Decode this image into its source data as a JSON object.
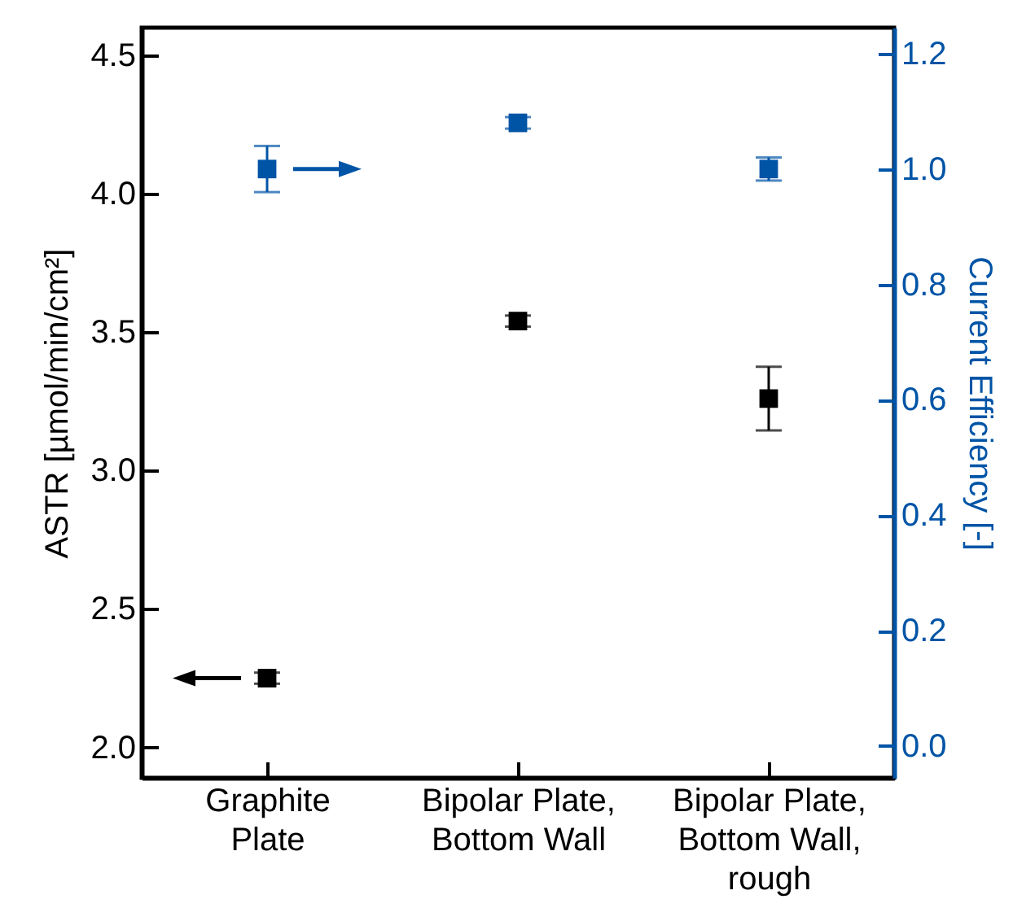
{
  "chart_data": {
    "type": "scatter",
    "categories": [
      "Graphite Plate",
      "Bipolar Plate, Bottom Wall",
      "Bipolar Plate, Bottom Wall, rough"
    ],
    "ylabel": "ASTR [µmol/min/cm²]",
    "y2label": "Current Efficiency [-]",
    "marker": "square",
    "ylim": [
      1.89,
      4.6
    ],
    "yticks": [
      {
        "value": 2,
        "label": "2.0"
      },
      {
        "value": 2.5,
        "label": "2.5"
      },
      {
        "value": 3,
        "label": "3.0"
      },
      {
        "value": 3.5,
        "label": "3.5"
      },
      {
        "value": 4,
        "label": "4.0"
      },
      {
        "value": 4.5,
        "label": "4.5"
      }
    ],
    "y2lim": [
      -0.055,
      1.245
    ],
    "y2ticks": [
      {
        "value": 0,
        "label": "0.0"
      },
      {
        "value": 0.2,
        "label": "0.2"
      },
      {
        "value": 0.4,
        "label": "0.4"
      },
      {
        "value": 0.6,
        "label": "0.6"
      },
      {
        "value": 0.8,
        "label": "0.8"
      },
      {
        "value": 1,
        "label": "1.0"
      },
      {
        "value": 1.2,
        "label": "1.2"
      }
    ],
    "series": [
      {
        "color": "#000000",
        "values": [
          2.25,
          3.54,
          3.26
        ],
        "errors": [
          0.02,
          0.02,
          0.115
        ]
      },
      {
        "color": "#0054a6",
        "axis": "y2",
        "values": [
          1.0,
          1.08,
          1.0
        ],
        "errors": [
          0.04,
          0.01,
          0.02
        ]
      }
    ]
  }
}
